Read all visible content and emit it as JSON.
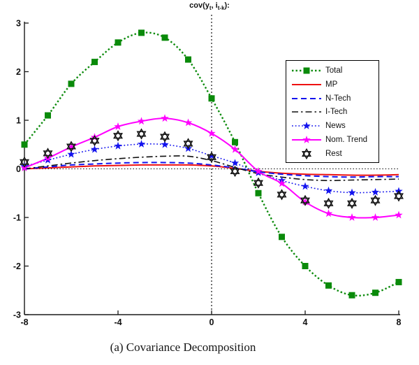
{
  "figure": {
    "title": {
      "pre": "cov(y",
      "sub1": "t",
      "mid": ", i",
      "sub2": "t-k",
      "post": "):"
    },
    "caption": "(a) Covariance Decomposition"
  },
  "axes": {
    "xlim": [
      -8,
      8
    ],
    "ylim": [
      -3,
      3
    ],
    "x_ticks": [
      -8,
      -4,
      0,
      4,
      8
    ],
    "x_tick_labels": [
      "-8",
      "-4",
      "0",
      "4",
      "8"
    ],
    "y_ticks": [
      3,
      2,
      1,
      0,
      -1,
      -2,
      -3
    ],
    "y_tick_labels": [
      "3",
      "2",
      "1",
      "0",
      "-1",
      "-2",
      "-3"
    ],
    "zero_lines": true,
    "axis_color": "#1a1a1a"
  },
  "legend": {
    "position": "upper-right",
    "items": [
      {
        "key": "total",
        "label": "Total"
      },
      {
        "key": "mp",
        "label": "MP"
      },
      {
        "key": "n-tech",
        "label": "N-Tech"
      },
      {
        "key": "i-tech",
        "label": "I-Tech"
      },
      {
        "key": "news",
        "label": "News"
      },
      {
        "key": "nom-trend",
        "label": "Nom. Trend"
      },
      {
        "key": "rest",
        "label": "Rest"
      }
    ]
  },
  "chart_data": {
    "type": "line",
    "title": "cov(y_t, i_{t-k}):",
    "xlabel": "",
    "ylabel": "",
    "x": [
      -8,
      -7,
      -6,
      -5,
      -4,
      -3,
      -2,
      -1,
      0,
      1,
      2,
      3,
      4,
      5,
      6,
      7,
      8
    ],
    "series": [
      {
        "name": "Total",
        "key": "total",
        "color": "#0a8a0a",
        "line": "dotted-bold",
        "marker": "square",
        "values": [
          0.5,
          1.1,
          1.75,
          2.2,
          2.6,
          2.8,
          2.7,
          2.25,
          1.45,
          0.55,
          -0.5,
          -1.4,
          -2.0,
          -2.4,
          -2.6,
          -2.55,
          -2.33
        ]
      },
      {
        "name": "MP",
        "key": "mp",
        "color": "#ee1111",
        "line": "solid",
        "marker": "none",
        "values": [
          0.0,
          0.02,
          0.04,
          0.06,
          0.07,
          0.08,
          0.08,
          0.08,
          0.06,
          0.01,
          -0.05,
          -0.09,
          -0.11,
          -0.12,
          -0.13,
          -0.13,
          -0.12
        ]
      },
      {
        "name": "N-Tech",
        "key": "n-tech",
        "color": "#1313ee",
        "line": "dashed",
        "marker": "none",
        "values": [
          0.0,
          0.04,
          0.08,
          0.1,
          0.12,
          0.13,
          0.13,
          0.12,
          0.08,
          0.02,
          -0.06,
          -0.11,
          -0.14,
          -0.16,
          -0.17,
          -0.16,
          -0.16
        ]
      },
      {
        "name": "I-Tech",
        "key": "i-tech",
        "color": "#111111",
        "line": "dashdot",
        "marker": "none",
        "values": [
          0.0,
          0.06,
          0.12,
          0.17,
          0.21,
          0.24,
          0.26,
          0.26,
          0.17,
          0.03,
          -0.1,
          -0.17,
          -0.22,
          -0.24,
          -0.23,
          -0.22,
          -0.21
        ]
      },
      {
        "name": "News",
        "key": "news",
        "color": "#1313ee",
        "line": "dotted-fine",
        "marker": "star5",
        "values": [
          0.05,
          0.18,
          0.3,
          0.4,
          0.47,
          0.51,
          0.5,
          0.42,
          0.27,
          0.12,
          -0.08,
          -0.24,
          -0.36,
          -0.45,
          -0.49,
          -0.48,
          -0.46
        ]
      },
      {
        "name": "Nom. Trend",
        "key": "nom-trend",
        "color": "#ff00ff",
        "line": "solid",
        "marker": "star5",
        "values": [
          0.02,
          0.22,
          0.45,
          0.65,
          0.87,
          0.98,
          1.04,
          0.95,
          0.73,
          0.4,
          -0.05,
          -0.3,
          -0.68,
          -0.92,
          -1.0,
          -1.0,
          -0.95
        ]
      },
      {
        "name": "Rest",
        "key": "rest",
        "color": "#111111",
        "line": "none",
        "marker": "hexagram",
        "values": [
          0.14,
          0.32,
          0.46,
          0.58,
          0.68,
          0.72,
          0.66,
          0.52,
          0.24,
          -0.05,
          -0.29,
          -0.53,
          -0.65,
          -0.71,
          -0.71,
          -0.65,
          -0.56
        ]
      }
    ]
  }
}
